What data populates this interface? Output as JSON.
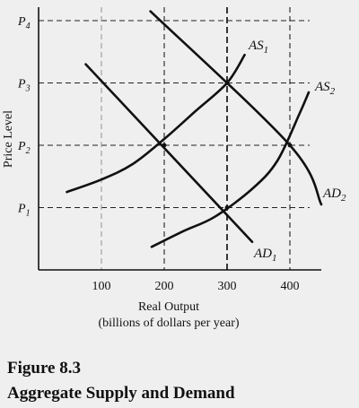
{
  "figure": {
    "number": "Figure 8.3",
    "title": "Aggregate Supply and Demand"
  },
  "chart_data": {
    "type": "line",
    "xlabel": "Real Output",
    "xlabel_sub": "(billions of dollars per year)",
    "ylabel": "Price Level",
    "xlim": [
      0,
      450
    ],
    "xticks": [
      100,
      200,
      300,
      400
    ],
    "xtick_labels": [
      "100",
      "200",
      "300",
      "400"
    ],
    "price_levels": [
      {
        "main": "P",
        "sub": "1",
        "value": 1
      },
      {
        "main": "P",
        "sub": "2",
        "value": 2
      },
      {
        "main": "P",
        "sub": "3",
        "value": 3
      },
      {
        "main": "P",
        "sub": "4",
        "value": 4
      }
    ],
    "ylim": [
      0,
      4.2
    ],
    "grid": "dashed reference lines",
    "series": [
      {
        "main": "AD",
        "sub": "1",
        "kind": "demand",
        "x": [
          75,
          340
        ],
        "y": [
          3.3,
          0.45
        ]
      },
      {
        "main": "AD",
        "sub": "2",
        "kind": "demand",
        "x": [
          178,
          400,
          450
        ],
        "y": [
          4.15,
          2,
          1.05
        ]
      },
      {
        "main": "AS",
        "sub": "1",
        "kind": "supply",
        "x": [
          45,
          100,
          150,
          200,
          250,
          300,
          328
        ],
        "y": [
          1.25,
          1.45,
          1.7,
          2.1,
          2.55,
          3,
          3.45
        ]
      },
      {
        "main": "AS",
        "sub": "2",
        "kind": "supply",
        "x": [
          180,
          230,
          280,
          340,
          380,
          415,
          430
        ],
        "y": [
          0.37,
          0.62,
          0.85,
          1.3,
          1.75,
          2.5,
          2.85
        ]
      }
    ],
    "equilibria": [
      {
        "x": 200,
        "y": 2
      },
      {
        "x": 300,
        "y": 1
      },
      {
        "x": 300,
        "y": 3
      },
      {
        "x": 400,
        "y": 2
      }
    ]
  }
}
